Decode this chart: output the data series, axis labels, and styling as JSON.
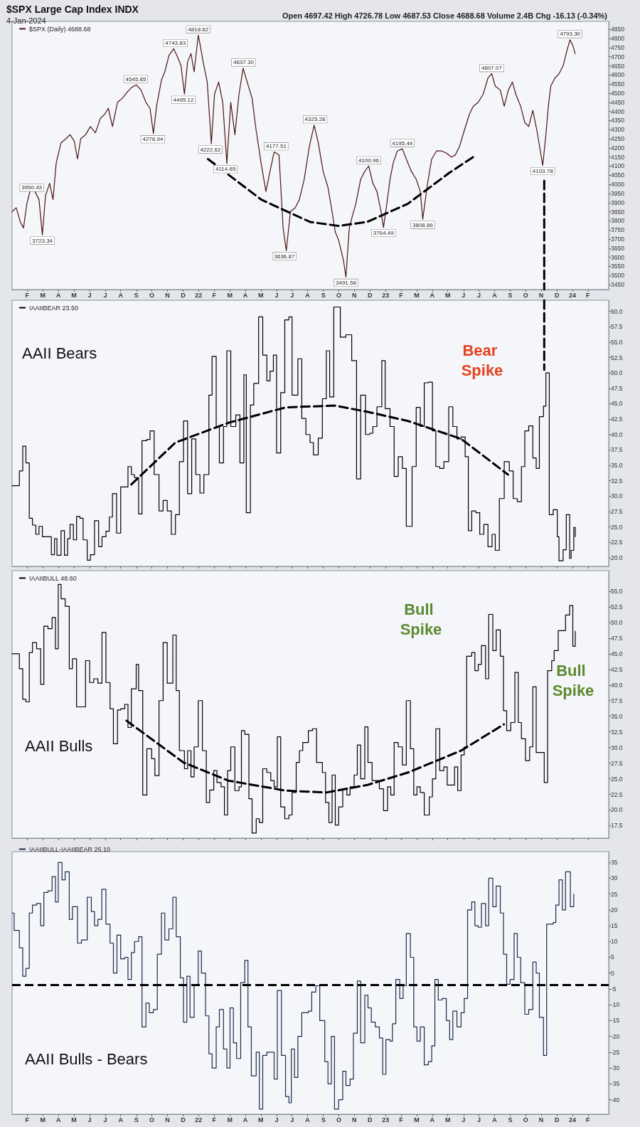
{
  "chart_data": [
    {
      "type": "line",
      "title": "$SPX Large Cap Index INDX",
      "subtitle": "4-Jan-2024",
      "legend": "top left",
      "marker": "none",
      "annotations": [
        "Open 4697.42 High 4726.78 Low 4687.53 Close 4688.68 Volume 2.4B Chg -16.13 (-0.34%)",
        {
          "text": "3950.43",
          "x": 2021.107,
          "y": 3950.43
        },
        {
          "text": "3723.34",
          "x": 2021.164,
          "y": 3723.34
        },
        {
          "text": "4545.85",
          "x": 2021.664,
          "y": 4545.85
        },
        {
          "text": "4278.94",
          "x": 2021.755,
          "y": 4278.94
        },
        {
          "text": "4743.83",
          "x": 2021.876,
          "y": 4743.83
        },
        {
          "text": "4495.12",
          "x": 2021.919,
          "y": 4495.12
        },
        {
          "text": "4818.62",
          "x": 2021.998,
          "y": 4818.62
        },
        {
          "text": "4222.62",
          "x": 2022.063,
          "y": 4222.62
        },
        {
          "text": "4114.65",
          "x": 2022.144,
          "y": 4114.65
        },
        {
          "text": "4637.30",
          "x": 2022.24,
          "y": 4637.3
        },
        {
          "text": "4177.51",
          "x": 2022.415,
          "y": 4177.51
        },
        {
          "text": "3636.87",
          "x": 2022.459,
          "y": 3636.87
        },
        {
          "text": "4325.28",
          "x": 2022.623,
          "y": 4325.28
        },
        {
          "text": "3491.58",
          "x": 2022.788,
          "y": 3491.58
        },
        {
          "text": "4100.96",
          "x": 2022.91,
          "y": 4100.96
        },
        {
          "text": "3764.49",
          "x": 2022.989,
          "y": 3764.49
        },
        {
          "text": "4195.44",
          "x": 2023.09,
          "y": 4195.44
        },
        {
          "text": "3808.86",
          "x": 2023.199,
          "y": 3808.86
        },
        {
          "text": "4607.07",
          "x": 2023.568,
          "y": 4607.07
        },
        {
          "text": "4103.78",
          "x": 2023.841,
          "y": 4103.78
        },
        {
          "text": "4793.30",
          "x": 2023.987,
          "y": 4793.3
        }
      ],
      "xlim": [
        2021.002,
        2024.194
      ],
      "ylim": [
        3423,
        4894
      ],
      "xticks": [
        {
          "value": 2021.083,
          "label": "F"
        },
        {
          "value": 2021.167,
          "label": "M"
        },
        {
          "value": 2021.25,
          "label": "A"
        },
        {
          "value": 2021.333,
          "label": "M"
        },
        {
          "value": 2021.417,
          "label": "J"
        },
        {
          "value": 2021.5,
          "label": "J"
        },
        {
          "value": 2021.583,
          "label": "A"
        },
        {
          "value": 2021.667,
          "label": "S"
        },
        {
          "value": 2021.75,
          "label": "O"
        },
        {
          "value": 2021.833,
          "label": "N"
        },
        {
          "value": 2021.917,
          "label": "D"
        },
        {
          "value": 2022,
          "label": "22"
        },
        {
          "value": 2022.083,
          "label": "F"
        },
        {
          "value": 2022.167,
          "label": "M"
        },
        {
          "value": 2022.25,
          "label": "A"
        },
        {
          "value": 2022.333,
          "label": "M"
        },
        {
          "value": 2022.417,
          "label": "J"
        },
        {
          "value": 2022.5,
          "label": "J"
        },
        {
          "value": 2022.583,
          "label": "A"
        },
        {
          "value": 2022.667,
          "label": "S"
        },
        {
          "value": 2022.75,
          "label": "O"
        },
        {
          "value": 2022.833,
          "label": "N"
        },
        {
          "value": 2022.917,
          "label": "D"
        },
        {
          "value": 2023,
          "label": "23"
        },
        {
          "value": 2023.083,
          "label": "F"
        },
        {
          "value": 2023.167,
          "label": "M"
        },
        {
          "value": 2023.25,
          "label": "A"
        },
        {
          "value": 2023.333,
          "label": "M"
        },
        {
          "value": 2023.417,
          "label": "J"
        },
        {
          "value": 2023.5,
          "label": "J"
        },
        {
          "value": 2023.583,
          "label": "A"
        },
        {
          "value": 2023.667,
          "label": "S"
        },
        {
          "value": 2023.75,
          "label": "O"
        },
        {
          "value": 2023.833,
          "label": "N"
        },
        {
          "value": 2023.917,
          "label": "D"
        },
        {
          "value": 2024,
          "label": "24"
        },
        {
          "value": 2024.083,
          "label": "F"
        }
      ],
      "yticks": [
        3450,
        3500,
        3550,
        3600,
        3650,
        3700,
        3750,
        3800,
        3850,
        3900,
        3950,
        4000,
        4050,
        4100,
        4150,
        4200,
        4250,
        4300,
        4350,
        4400,
        4450,
        4500,
        4550,
        4600,
        4650,
        4700,
        4750,
        4800,
        4850
      ],
      "series": [
        {
          "name": "$SPX (Daily) 4688.68",
          "color": "#4a1414",
          "x": [
            2021.002,
            2021.024,
            2021.046,
            2021.063,
            2021.081,
            2021.103,
            2021.124,
            2021.146,
            2021.164,
            2021.181,
            2021.203,
            2021.221,
            2021.238,
            2021.264,
            2021.29,
            2021.312,
            2021.334,
            2021.352,
            2021.369,
            2021.395,
            2021.421,
            2021.448,
            2021.474,
            2021.496,
            2021.517,
            2021.539,
            2021.566,
            2021.592,
            2021.618,
            2021.64,
            2021.666,
            2021.692,
            2021.718,
            2021.74,
            2021.758,
            2021.775,
            2021.801,
            2021.819,
            2021.841,
            2021.867,
            2021.889,
            2021.906,
            2021.924,
            2021.941,
            2021.959,
            2021.976,
            2021.998,
            2022.007,
            2022.024,
            2022.046,
            2022.068,
            2022.085,
            2022.107,
            2022.129,
            2022.151,
            2022.172,
            2022.194,
            2022.216,
            2022.238,
            2022.26,
            2022.286,
            2022.308,
            2022.334,
            2022.36,
            2022.382,
            2022.404,
            2022.43,
            2022.452,
            2022.469,
            2022.491,
            2022.517,
            2022.539,
            2022.565,
            2022.592,
            2022.618,
            2022.64,
            2022.666,
            2022.692,
            2022.714,
            2022.731,
            2022.749,
            2022.775,
            2022.788,
            2022.806,
            2022.823,
            2022.841,
            2022.867,
            2022.889,
            2022.91,
            2022.932,
            2022.954,
            2022.976,
            2022.989,
            2023.007,
            2023.024,
            2023.041,
            2023.063,
            2023.09,
            2023.111,
            2023.138,
            2023.164,
            2023.186,
            2023.199,
            2023.225,
            2023.247,
            2023.273,
            2023.299,
            2023.325,
            2023.352,
            2023.373,
            2023.395,
            2023.421,
            2023.448,
            2023.469,
            2023.496,
            2023.522,
            2023.548,
            2023.568,
            2023.587,
            2023.614,
            2023.635,
            2023.657,
            2023.679,
            2023.697,
            2023.723,
            2023.745,
            2023.766,
            2023.788,
            2023.81,
            2023.841,
            2023.858,
            2023.871,
            2023.884,
            2023.906,
            2023.928,
            2023.95,
            2023.972,
            2023.987,
            2024.002,
            2024.015
          ],
          "values": [
            3850,
            3872,
            3794,
            3761,
            3894,
            3983,
            3961,
            3917,
            3723,
            3939,
            4006,
            3917,
            4117,
            4228,
            4250,
            4272,
            4239,
            4139,
            4250,
            4272,
            4317,
            4283,
            4361,
            4383,
            4417,
            4317,
            4450,
            4472,
            4506,
            4530,
            4546,
            4517,
            4450,
            4417,
            4279,
            4428,
            4572,
            4617,
            4706,
            4744,
            4694,
            4650,
            4495,
            4672,
            4717,
            4617,
            4818,
            4772,
            4672,
            4561,
            4223,
            4494,
            4561,
            4450,
            4115,
            4450,
            4272,
            4494,
            4637,
            4561,
            4472,
            4294,
            4117,
            3961,
            4072,
            4178,
            4161,
            3761,
            3637,
            3850,
            3872,
            3917,
            4028,
            4206,
            4325,
            4228,
            4072,
            3983,
            3850,
            3739,
            3694,
            3583,
            3492,
            3761,
            3828,
            3894,
            4028,
            4072,
            4101,
            4006,
            3961,
            3850,
            3764,
            3894,
            4028,
            4117,
            4183,
            4195,
            4139,
            4072,
            4028,
            3961,
            3809,
            4006,
            4139,
            4183,
            4183,
            4172,
            4150,
            4161,
            4206,
            4294,
            4383,
            4428,
            4450,
            4494,
            4583,
            4607,
            4539,
            4517,
            4428,
            4517,
            4561,
            4494,
            4428,
            4339,
            4317,
            4406,
            4294,
            4104,
            4272,
            4428,
            4539,
            4583,
            4606,
            4650,
            4739,
            4793,
            4761,
            4717
          ]
        },
        {
          "color": "#000000",
          "line_style": "dashed",
          "x": [
            2022.05,
            2022.334,
            2022.596,
            2022.749,
            2022.902,
            2023.12,
            2023.338,
            2023.469
          ],
          "values": [
            4139,
            3917,
            3794,
            3772,
            3794,
            3894,
            4061,
            4150
          ]
        },
        {
          "color": "#000000",
          "line_style": "dashed",
          "x": [
            2023.849,
            2023.849
          ],
          "values": [
            4020,
            3423
          ]
        }
      ]
    },
    {
      "type": "step",
      "title": "AAII Bears",
      "legend": "top left",
      "marker": "none",
      "tick_labels": "y",
      "annotations": [
        "Bear Spike"
      ],
      "xlim": [
        2021.002,
        2024.194
      ],
      "ylim": [
        18.6,
        61.8
      ],
      "xticks": [
        2021.083,
        2021.167,
        2021.25,
        2021.333,
        2021.417,
        2021.5,
        2021.583,
        2021.667,
        2021.75,
        2021.833,
        2021.917,
        2022,
        2022.083,
        2022.167,
        2022.25,
        2022.333,
        2022.417,
        2022.5,
        2022.583,
        2022.667,
        2022.75,
        2022.833,
        2022.917,
        2023,
        2023.083,
        2023.167,
        2023.25,
        2023.333,
        2023.417,
        2023.5,
        2023.583,
        2023.667,
        2023.75,
        2023.833,
        2023.917,
        2024,
        2024.083
      ],
      "yticks": [
        {
          "value": 20,
          "label": "20.0"
        },
        {
          "value": 22.5,
          "label": "22.5"
        },
        {
          "value": 25,
          "label": "25.0"
        },
        {
          "value": 27.5,
          "label": "27.5"
        },
        {
          "value": 30,
          "label": "30.0"
        },
        {
          "value": 32.5,
          "label": "32.5"
        },
        {
          "value": 35,
          "label": "35.0"
        },
        {
          "value": 37.5,
          "label": "37.5"
        },
        {
          "value": 40,
          "label": "40.0"
        },
        {
          "value": 42.5,
          "label": "42.5"
        },
        {
          "value": 45,
          "label": "45.0"
        },
        {
          "value": 47.5,
          "label": "47.5"
        },
        {
          "value": 50,
          "label": "50.0"
        },
        {
          "value": 52.5,
          "label": "52.5"
        },
        {
          "value": 55,
          "label": "55.0"
        },
        {
          "value": 57.5,
          "label": "57.5"
        },
        {
          "value": 60,
          "label": "60.0"
        }
      ],
      "series": [
        {
          "name": "!AAIIBEAR 23.50",
          "color": "#000000",
          "x": [
            2021.002,
            2021.041,
            2021.059,
            2021.076,
            2021.094,
            2021.111,
            2021.129,
            2021.146,
            2021.164,
            2021.212,
            2021.229,
            2021.242,
            2021.264,
            2021.282,
            2021.299,
            2021.312,
            2021.33,
            2021.347,
            2021.365,
            2021.382,
            2021.404,
            2021.421,
            2021.443,
            2021.465,
            2021.483,
            2021.504,
            2021.522,
            2021.539,
            2021.561,
            2021.583,
            2021.605,
            2021.622,
            2021.64,
            2021.657,
            2021.679,
            2021.697,
            2021.723,
            2021.74,
            2021.762,
            2021.788,
            2021.81,
            2021.832,
            2021.854,
            2021.876,
            2021.897,
            2021.919,
            2021.941,
            2021.963,
            2021.985,
            2022.007,
            2022.028,
            2022.055,
            2022.072,
            2022.094,
            2022.111,
            2022.133,
            2022.151,
            2022.172,
            2022.199,
            2022.221,
            2022.242,
            2022.255,
            2022.277,
            2022.295,
            2022.321,
            2022.343,
            2022.365,
            2022.382,
            2022.4,
            2022.417,
            2022.439,
            2022.461,
            2022.483,
            2022.5,
            2022.531,
            2022.552,
            2022.574,
            2022.596,
            2022.614,
            2022.64,
            2022.662,
            2022.683,
            2022.701,
            2022.723,
            2022.758,
            2022.788,
            2022.819,
            2022.845,
            2022.867,
            2022.893,
            2022.915,
            2022.932,
            2022.954,
            2022.98,
            2022.998,
            2023.024,
            2023.046,
            2023.068,
            2023.09,
            2023.111,
            2023.142,
            2023.164,
            2023.186,
            2023.207,
            2023.229,
            2023.251,
            2023.269,
            2023.29,
            2023.312,
            2023.338,
            2023.36,
            2023.382,
            2023.404,
            2023.426,
            2023.443,
            2023.461,
            2023.483,
            2023.504,
            2023.526,
            2023.548,
            2023.57,
            2023.587,
            2023.609,
            2023.635,
            2023.662,
            2023.683,
            2023.705,
            2023.727,
            2023.745,
            2023.766,
            2023.788,
            2023.806,
            2023.823,
            2023.845,
            2023.858,
            2023.876,
            2023.897,
            2023.919,
            2023.928,
            2023.95,
            2023.967,
            2023.985,
            2023.993,
            2024.007,
            2024.015
          ],
          "values": [
            31.7,
            34.1,
            38.1,
            35.4,
            26.4,
            25.3,
            23.8,
            25.1,
            23.4,
            20.5,
            23.1,
            20.4,
            24.4,
            20.4,
            23.1,
            25.4,
            22.9,
            26.7,
            26.4,
            22.9,
            19.6,
            20.5,
            26,
            21.8,
            23.4,
            24.3,
            26.6,
            30.4,
            24,
            31.5,
            31.5,
            34.8,
            33.5,
            33,
            27.1,
            39,
            39.2,
            40.6,
            33.5,
            27.6,
            29.3,
            27.6,
            23.8,
            27,
            35.6,
            42.2,
            30.4,
            39.3,
            33.5,
            30.5,
            33.5,
            46.4,
            52.7,
            41.3,
            35.4,
            41.3,
            53.6,
            41.3,
            43.2,
            35.4,
            49.7,
            27.3,
            44.8,
            48.3,
            59.1,
            52.9,
            48.7,
            50.3,
            52.9,
            37,
            46.8,
            58.6,
            59.1,
            46.4,
            52.3,
            42.6,
            40,
            38.7,
            36.7,
            39.4,
            45.8,
            53.6,
            46.1,
            60.7,
            55.8,
            56.2,
            52,
            32.8,
            46.4,
            40,
            40.2,
            41.3,
            44.5,
            52,
            44.2,
            41.3,
            33.2,
            36.4,
            34.5,
            25.1,
            34.8,
            44.4,
            41.3,
            48.4,
            48.5,
            40.6,
            34.8,
            34.5,
            35.6,
            44.5,
            41.3,
            39.3,
            39.6,
            36.4,
            24.4,
            27.6,
            27.3,
            23.8,
            25.4,
            21.8,
            23.8,
            21.2,
            29.6,
            35.6,
            34.1,
            29.6,
            29.1,
            34.8,
            40.6,
            41.4,
            36.2,
            34.5,
            42.9,
            44.6,
            50,
            27,
            27.8,
            23.4,
            19.5,
            21.3,
            27,
            19.9,
            21.2,
            24.9,
            23.4
          ]
        },
        {
          "color": "#000000",
          "type": "line",
          "line_style": "dashed",
          "x": [
            2021.64,
            2021.876,
            2022.159,
            2022.465,
            2022.727,
            2022.902,
            2023.12,
            2023.404,
            2023.655
          ],
          "values": [
            31.9,
            38.7,
            41.9,
            44.4,
            44.7,
            43.7,
            42.2,
            39.3,
            33.5
          ]
        },
        {
          "color": "#000000",
          "type": "line",
          "line_style": "dashed",
          "x": [
            2023.849,
            2023.849
          ],
          "values": [
            61.8,
            50.5
          ]
        }
      ]
    },
    {
      "type": "step",
      "title": "AAII Bulls",
      "legend": "top left",
      "marker": "none",
      "tick_labels": "y",
      "annotations": [
        "Bull Spike",
        "Bull Spike"
      ],
      "xlim": [
        2021.002,
        2024.194
      ],
      "ylim": [
        15.5,
        58.3
      ],
      "xticks": [
        2021.083,
        2021.167,
        2021.25,
        2021.333,
        2021.417,
        2021.5,
        2021.583,
        2021.667,
        2021.75,
        2021.833,
        2021.917,
        2022,
        2022.083,
        2022.167,
        2022.25,
        2022.333,
        2022.417,
        2022.5,
        2022.583,
        2022.667,
        2022.75,
        2022.833,
        2022.917,
        2023,
        2023.083,
        2023.167,
        2023.25,
        2023.333,
        2023.417,
        2023.5,
        2023.583,
        2023.667,
        2023.75,
        2023.833,
        2023.917,
        2024,
        2024.083
      ],
      "yticks": [
        {
          "value": 17.5,
          "label": "17.5"
        },
        {
          "value": 20,
          "label": "20.0"
        },
        {
          "value": 22.5,
          "label": "22.5"
        },
        {
          "value": 25,
          "label": "25.0"
        },
        {
          "value": 27.5,
          "label": "27.5"
        },
        {
          "value": 30,
          "label": "30.0"
        },
        {
          "value": 32.5,
          "label": "32.5"
        },
        {
          "value": 35,
          "label": "35.0"
        },
        {
          "value": 37.5,
          "label": "37.5"
        },
        {
          "value": 40,
          "label": "40.0"
        },
        {
          "value": 42.5,
          "label": "42.5"
        },
        {
          "value": 45,
          "label": "45.0"
        },
        {
          "value": 47.5,
          "label": "47.5"
        },
        {
          "value": 50,
          "label": "50.0"
        },
        {
          "value": 52.5,
          "label": "52.5"
        },
        {
          "value": 55,
          "label": "55.0"
        }
      ],
      "series": [
        {
          "name": "!AAIIBULL 48.60",
          "color": "#000000",
          "x": [
            2021.002,
            2021.024,
            2021.041,
            2021.059,
            2021.076,
            2021.094,
            2021.111,
            2021.133,
            2021.155,
            2021.172,
            2021.194,
            2021.216,
            2021.234,
            2021.249,
            2021.264,
            2021.286,
            2021.308,
            2021.325,
            2021.347,
            2021.373,
            2021.395,
            2021.417,
            2021.439,
            2021.461,
            2021.483,
            2021.504,
            2021.526,
            2021.544,
            2021.566,
            2021.583,
            2021.605,
            2021.622,
            2021.64,
            2021.666,
            2021.679,
            2021.701,
            2021.723,
            2021.749,
            2021.766,
            2021.788,
            2021.81,
            2021.832,
            2021.862,
            2021.88,
            2021.897,
            2021.924,
            2021.941,
            2021.959,
            2021.976,
            2021.998,
            2022.02,
            2022.041,
            2022.059,
            2022.081,
            2022.098,
            2022.12,
            2022.138,
            2022.155,
            2022.172,
            2022.194,
            2022.216,
            2022.229,
            2022.247,
            2022.269,
            2022.286,
            2022.308,
            2022.325,
            2022.343,
            2022.365,
            2022.386,
            2022.404,
            2022.421,
            2022.439,
            2022.461,
            2022.483,
            2022.5,
            2022.522,
            2022.539,
            2022.557,
            2022.587,
            2022.609,
            2022.631,
            2022.662,
            2022.679,
            2022.697,
            2022.714,
            2022.731,
            2022.749,
            2022.771,
            2022.793,
            2022.81,
            2022.832,
            2022.849,
            2022.867,
            2022.889,
            2022.906,
            2022.928,
            2022.945,
            2022.967,
            2022.989,
            2023.011,
            2023.028,
            2023.046,
            2023.068,
            2023.09,
            2023.111,
            2023.133,
            2023.151,
            2023.168,
            2023.186,
            2023.207,
            2023.234,
            2023.251,
            2023.269,
            2023.29,
            2023.312,
            2023.33,
            2023.352,
            2023.369,
            2023.386,
            2023.404,
            2023.421,
            2023.434,
            2023.461,
            2023.478,
            2023.496,
            2023.513,
            2023.535,
            2023.552,
            2023.574,
            2023.592,
            2023.614,
            2023.631,
            2023.648,
            2023.67,
            2023.692,
            2023.71,
            2023.727,
            2023.749,
            2023.771,
            2023.788,
            2023.806,
            2023.823,
            2023.849,
            2023.867,
            2023.889,
            2023.902,
            2023.924,
            2023.945,
            2023.963,
            2023.985,
            2024.002,
            2024.015
          ],
          "values": [
            45,
            45,
            42.6,
            37.7,
            37.3,
            45.2,
            46.8,
            45.8,
            40.1,
            49.4,
            49,
            50.8,
            45.8,
            56.1,
            53.8,
            52.6,
            42.6,
            44.2,
            36.5,
            36.5,
            43.9,
            40.4,
            41,
            40.3,
            48.4,
            40.4,
            36.2,
            30.6,
            36,
            36.2,
            36.9,
            33.2,
            39.4,
            43.3,
            39.1,
            22.4,
            29.8,
            28.2,
            25.5,
            37.5,
            46.8,
            40.3,
            48,
            39.1,
            29.5,
            26.6,
            29.5,
            25.3,
            30.1,
            37.5,
            29.5,
            21.2,
            23.2,
            26.3,
            24.4,
            23.7,
            19.2,
            26.3,
            30.1,
            23.1,
            23.7,
            32.7,
            32.1,
            21.8,
            16.3,
            18.6,
            18,
            26.6,
            26,
            24.7,
            23.7,
            31.7,
            20.5,
            18.6,
            19.2,
            22.8,
            27.6,
            29.5,
            30.8,
            32.7,
            33,
            27.6,
            26,
            21.2,
            18,
            25.6,
            17.6,
            20.5,
            23.4,
            22.4,
            23.7,
            25.6,
            30.4,
            25,
            33.3,
            27.6,
            24.7,
            24.7,
            23.4,
            19.9,
            23.7,
            22.4,
            30.8,
            30.1,
            27.2,
            37.5,
            29.8,
            22.4,
            23.7,
            22.8,
            19.2,
            22.1,
            25,
            33,
            26.3,
            26.9,
            24,
            24,
            26.9,
            23.1,
            28.8,
            30.1,
            44.6,
            45.2,
            42.3,
            43.3,
            46.3,
            41,
            51.3,
            45.5,
            48.8,
            44.6,
            35.9,
            32.7,
            34,
            42,
            34,
            31.4,
            27.9,
            30.1,
            39.7,
            29.2,
            29.2,
            24.4,
            42.3,
            43.9,
            45.5,
            48.7,
            48.7,
            51.2,
            52.7,
            46.2,
            48.6
          ]
        },
        {
          "color": "#000000",
          "type": "line",
          "line_style": "dashed",
          "x": [
            2021.614,
            2021.919,
            2022.159,
            2022.465,
            2022.683,
            2022.902,
            2023.12,
            2023.404,
            2023.633
          ],
          "values": [
            34.3,
            27.6,
            24.7,
            23.1,
            22.8,
            24,
            26,
            29.5,
            33.7
          ]
        }
      ]
    },
    {
      "type": "step",
      "title": "AAII Bulls - Bears",
      "legend": "top left",
      "marker": "none",
      "ref_lines": [
        {
          "axis": "y",
          "value": -3.7,
          "color": "#000000",
          "line_style": "dashed"
        }
      ],
      "xlim": [
        2021.002,
        2024.194
      ],
      "ylim": [
        -44.6,
        38.4
      ],
      "xticks": [
        {
          "value": 2021.083,
          "label": "F"
        },
        {
          "value": 2021.167,
          "label": "M"
        },
        {
          "value": 2021.25,
          "label": "A"
        },
        {
          "value": 2021.333,
          "label": "M"
        },
        {
          "value": 2021.417,
          "label": "J"
        },
        {
          "value": 2021.5,
          "label": "J"
        },
        {
          "value": 2021.583,
          "label": "A"
        },
        {
          "value": 2021.667,
          "label": "S"
        },
        {
          "value": 2021.75,
          "label": "O"
        },
        {
          "value": 2021.833,
          "label": "N"
        },
        {
          "value": 2021.917,
          "label": "D"
        },
        {
          "value": 2022,
          "label": "22"
        },
        {
          "value": 2022.083,
          "label": "F"
        },
        {
          "value": 2022.167,
          "label": "M"
        },
        {
          "value": 2022.25,
          "label": "A"
        },
        {
          "value": 2022.333,
          "label": "M"
        },
        {
          "value": 2022.417,
          "label": "J"
        },
        {
          "value": 2022.5,
          "label": "J"
        },
        {
          "value": 2022.583,
          "label": "A"
        },
        {
          "value": 2022.667,
          "label": "S"
        },
        {
          "value": 2022.75,
          "label": "O"
        },
        {
          "value": 2022.833,
          "label": "N"
        },
        {
          "value": 2022.917,
          "label": "D"
        },
        {
          "value": 2023,
          "label": "23"
        },
        {
          "value": 2023.083,
          "label": "F"
        },
        {
          "value": 2023.167,
          "label": "M"
        },
        {
          "value": 2023.25,
          "label": "A"
        },
        {
          "value": 2023.333,
          "label": "M"
        },
        {
          "value": 2023.417,
          "label": "J"
        },
        {
          "value": 2023.5,
          "label": "J"
        },
        {
          "value": 2023.583,
          "label": "A"
        },
        {
          "value": 2023.667,
          "label": "S"
        },
        {
          "value": 2023.75,
          "label": "O"
        },
        {
          "value": 2023.833,
          "label": "N"
        },
        {
          "value": 2023.917,
          "label": "D"
        },
        {
          "value": 2024,
          "label": "24"
        },
        {
          "value": 2024.083,
          "label": "F"
        }
      ],
      "yticks": [
        -40,
        -35,
        -30,
        -25,
        -20,
        -15,
        -10,
        -5,
        0,
        5,
        10,
        15,
        20,
        25,
        30,
        35
      ],
      "series": [
        {
          "name": "!AAIIBULL-!AAIIBEAR 25.10",
          "color": "#1c2b4a",
          "x": [
            2021.002,
            2021.013,
            2021.041,
            2021.059,
            2021.076,
            2021.094,
            2021.111,
            2021.133,
            2021.155,
            2021.172,
            2021.194,
            2021.216,
            2021.234,
            2021.249,
            2021.269,
            2021.286,
            2021.308,
            2021.325,
            2021.352,
            2021.373,
            2021.404,
            2021.426,
            2021.443,
            2021.461,
            2021.482,
            2021.504,
            2021.526,
            2021.544,
            2021.563,
            2021.583,
            2021.605,
            2021.622,
            2021.64,
            2021.657,
            2021.679,
            2021.697,
            2021.718,
            2021.736,
            2021.758,
            2021.779,
            2021.801,
            2021.819,
            2021.841,
            2021.862,
            2021.88,
            2021.902,
            2021.919,
            2021.937,
            2021.954,
            2021.976,
            2021.998,
            2022.015,
            2022.037,
            2022.055,
            2022.072,
            2022.094,
            2022.111,
            2022.133,
            2022.151,
            2022.168,
            2022.186,
            2022.203,
            2022.225,
            2022.247,
            2022.264,
            2022.282,
            2022.308,
            2022.325,
            2022.343,
            2022.365,
            2022.391,
            2022.404,
            2022.421,
            2022.443,
            2022.465,
            2022.483,
            2022.496,
            2022.513,
            2022.531,
            2022.552,
            2022.587,
            2022.605,
            2022.627,
            2022.648,
            2022.675,
            2022.692,
            2022.71,
            2022.727,
            2022.749,
            2022.771,
            2022.788,
            2022.81,
            2022.828,
            2022.849,
            2022.867,
            2022.889,
            2022.906,
            2022.924,
            2022.945,
            2022.967,
            2022.985,
            2023.002,
            2023.024,
            2023.037,
            2023.055,
            2023.076,
            2023.094,
            2023.111,
            2023.133,
            2023.151,
            2023.168,
            2023.186,
            2023.207,
            2023.229,
            2023.247,
            2023.264,
            2023.282,
            2023.303,
            2023.325,
            2023.343,
            2023.36,
            2023.382,
            2023.404,
            2023.421,
            2023.439,
            2023.461,
            2023.478,
            2023.496,
            2023.513,
            2023.535,
            2023.552,
            2023.574,
            2023.592,
            2023.614,
            2023.631,
            2023.648,
            2023.666,
            2023.688,
            2023.705,
            2023.723,
            2023.745,
            2023.766,
            2023.788,
            2023.806,
            2023.823,
            2023.845,
            2023.862,
            2023.897,
            2023.911,
            2023.928,
            2023.946,
            2023.963,
            2023.989,
            2024.007
          ],
          "values": [
            19,
            13.5,
            8,
            -1,
            1.5,
            19,
            21.5,
            22,
            15,
            25.5,
            26,
            30.5,
            22.5,
            35,
            29.5,
            32,
            17,
            21,
            9.5,
            10.5,
            24,
            19.5,
            15,
            17,
            26.5,
            15.5,
            9.5,
            0,
            12,
            4.5,
            5,
            -2,
            6.5,
            10,
            11.5,
            -17,
            -9.5,
            -12.5,
            -11.5,
            6,
            19,
            10.5,
            14,
            24,
            11.5,
            -1.5,
            -15.5,
            -1,
            -14,
            -4,
            7,
            0,
            -13.5,
            -25.5,
            -30,
            -17,
            -11.5,
            -24,
            -30,
            -11,
            -22,
            -27,
            -3,
            4,
            -17,
            -32.5,
            -25,
            -43,
            -26,
            -25,
            -25,
            -33.5,
            -5.5,
            -26,
            -39,
            -41,
            -24,
            -33,
            -20,
            -12.5,
            -12,
            -6,
            -4,
            -15,
            -28,
            -35,
            -20,
            -43,
            -40,
            -31,
            -35.5,
            -33.5,
            -19,
            -2.5,
            -22,
            -7,
            -11,
            -15.5,
            -17,
            -20.5,
            -32,
            -21,
            -21.5,
            -16,
            -2,
            -8,
            -4,
            12.5,
            5,
            -17,
            -21.5,
            -17,
            -29,
            -28,
            -23,
            -2,
            -8.5,
            -8,
            -15,
            -21,
            -12,
            -17,
            -12.5,
            -8,
            20,
            22.5,
            15,
            14.5,
            22,
            15,
            30,
            21,
            27.5,
            19,
            6,
            -3.5,
            -2,
            12.5,
            5,
            -3,
            -13,
            -11.5,
            3.5,
            0,
            -14,
            -26,
            15.5,
            16,
            21.5,
            29.5,
            20,
            32,
            21,
            25
          ]
        }
      ]
    }
  ]
}
